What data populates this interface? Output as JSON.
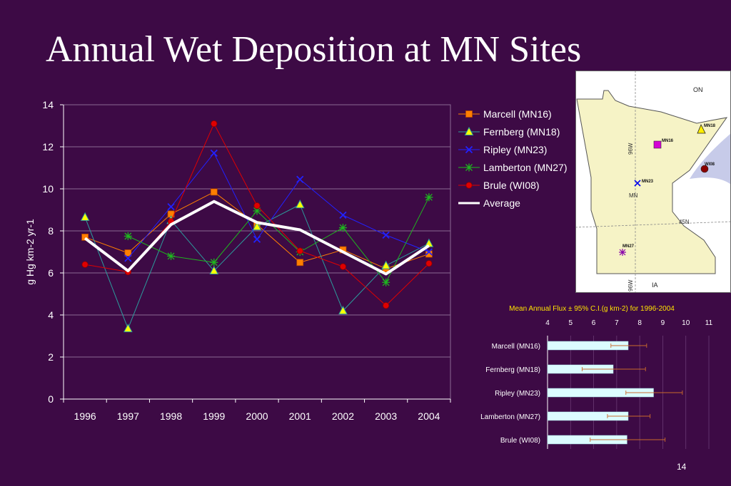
{
  "slide": {
    "title": "Annual Wet Deposition at MN Sites",
    "page_number": "14"
  },
  "colors": {
    "background": "#3d0a45",
    "grid": "#8a6a92",
    "text": "#ffffff",
    "map_land": "#f6f3c6",
    "map_water": "#c7cbe9",
    "flux_bar": "#dcfcff",
    "flux_error": "#c96a2c",
    "flux_title": "#ffe300"
  },
  "chart_data": [
    {
      "type": "line",
      "xlabel": "",
      "ylabel": "g Hg km-2 yr-1",
      "ylim": [
        0,
        14
      ],
      "yticks": [
        0,
        2,
        4,
        6,
        8,
        10,
        12,
        14
      ],
      "x": [
        "1996",
        "1997",
        "1998",
        "1999",
        "2000",
        "2001",
        "2002",
        "2003",
        "2004"
      ],
      "grid": true,
      "legend": "top-right",
      "series": [
        {
          "name": "Marcell (MN16)",
          "color": "#ff7f00",
          "marker": "square",
          "values": [
            7.7,
            6.95,
            8.8,
            9.85,
            8.3,
            6.5,
            7.1,
            6.2,
            6.9
          ]
        },
        {
          "name": "Fernberg (MN18)",
          "color": "#2c9c9c",
          "marker": "triangle",
          "values": [
            8.65,
            3.35,
            8.5,
            6.1,
            8.2,
            9.25,
            4.2,
            6.35,
            7.4
          ]
        },
        {
          "name": "Ripley (MN23)",
          "color": "#2222ff",
          "marker": "x",
          "values": [
            null,
            6.7,
            9.15,
            11.7,
            7.6,
            10.45,
            8.75,
            7.8,
            7.0
          ]
        },
        {
          "name": "Lamberton (MN27)",
          "color": "#1fb51f",
          "marker": "star",
          "values": [
            null,
            7.75,
            6.8,
            6.5,
            8.95,
            7.0,
            8.15,
            5.55,
            9.6
          ]
        },
        {
          "name": "Brule (WI08)",
          "color": "#e00000",
          "marker": "circle",
          "values": [
            6.4,
            6.05,
            8.45,
            13.1,
            9.2,
            7.05,
            6.3,
            4.45,
            6.45
          ]
        },
        {
          "name": "Average",
          "color": "#ffffff",
          "marker": "none",
          "values": [
            7.65,
            6.1,
            8.3,
            9.4,
            8.4,
            8.05,
            7.0,
            5.95,
            7.3
          ]
        }
      ]
    },
    {
      "type": "bar",
      "orientation": "horizontal",
      "title": "Mean Annual Flux ± 95% C.I.(g km-2) for 1996-2004",
      "xlim": [
        4,
        11
      ],
      "xticks": [
        4,
        5,
        6,
        7,
        8,
        9,
        10,
        11
      ],
      "categories": [
        "Marcell (MN16)",
        "Fernberg (MN18)",
        "Ripley (MN23)",
        "Lamberton (MN27)",
        "Brule (WI08)"
      ],
      "values": [
        7.5,
        6.85,
        8.6,
        7.5,
        7.45
      ],
      "ci_low": [
        6.75,
        5.5,
        7.4,
        6.6,
        5.85
      ],
      "ci_high": [
        8.3,
        8.25,
        9.85,
        8.45,
        9.1
      ]
    }
  ],
  "map": {
    "region_labels": {
      "on": "ON",
      "mn": "MN",
      "ia": "IA",
      "lat": "45N",
      "lon_top": "96W",
      "lon_bottom": "96W"
    },
    "sites": [
      {
        "label": "MN16",
        "marker": "square",
        "color": "#d400d4"
      },
      {
        "label": "MN18",
        "marker": "triangle",
        "color": "#ffee00"
      },
      {
        "label": "MN23",
        "marker": "x",
        "color": "#0000ee"
      },
      {
        "label": "MN27",
        "marker": "star",
        "color": "#8800aa"
      },
      {
        "label": "WI08",
        "marker": "circle",
        "color": "#8b0000"
      }
    ]
  }
}
